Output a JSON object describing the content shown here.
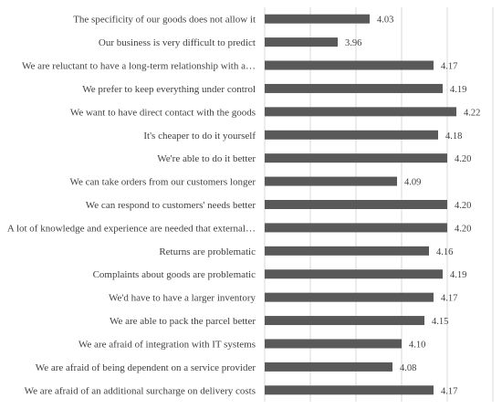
{
  "chart_data": {
    "type": "bar",
    "orientation": "horizontal",
    "title": "",
    "xlabel": "",
    "ylabel": "",
    "xlim": [
      3.8,
      4.3
    ],
    "grid": true,
    "legend": "none",
    "bar_color": "#595959",
    "categories": [
      "The specificity of our goods does not allow it",
      "Our business is very difficult to predict",
      "We are reluctant to have a long-term relationship with a…",
      "We prefer to keep everything under control",
      "We want to have direct contact with the goods",
      "It's cheaper to do it yourself",
      "We're able to do it better",
      "We can take orders from our customers longer",
      "We can respond to customers' needs better",
      "A lot of knowledge and experience are needed that external…",
      "Returns are problematic",
      "Complaints about goods are problematic",
      "We'd have to have a larger inventory",
      "We are able to pack the parcel better",
      "We are afraid of integration with IT systems",
      "We are afraid of being dependent on a service provider",
      "We are afraid of an additional surcharge on delivery costs"
    ],
    "values": [
      4.03,
      3.96,
      4.17,
      4.19,
      4.22,
      4.18,
      4.2,
      4.09,
      4.2,
      4.2,
      4.16,
      4.19,
      4.17,
      4.15,
      4.1,
      4.08,
      4.17
    ],
    "value_labels": [
      "4.03",
      "3.96",
      "4.17",
      "4.19",
      "4.22",
      "4.18",
      "4.20",
      "4.09",
      "4.20",
      "4.20",
      "4.16",
      "4.19",
      "4.17",
      "4.15",
      "4.10",
      "4.08",
      "4.17"
    ]
  }
}
